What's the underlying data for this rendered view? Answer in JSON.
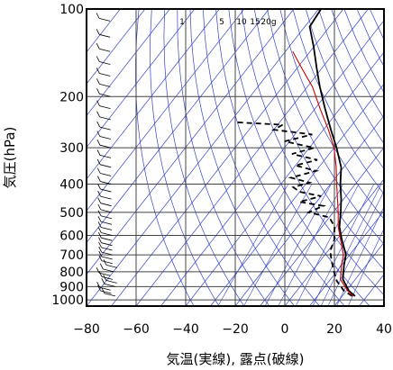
{
  "chart_data": {
    "type": "skew-t",
    "xlabel": "気温(実線), 露点(破線)",
    "ylabel": "気圧(hPa)",
    "xlim": [
      -80,
      40
    ],
    "ylim_hpa": [
      1050,
      100
    ],
    "x_ticks": [
      -80,
      -60,
      -40,
      -20,
      0,
      20,
      40
    ],
    "x_tick_labels": [
      "−80",
      "−60",
      "−40",
      "−20",
      "0",
      "20",
      "40"
    ],
    "pressure_ticks": [
      100,
      200,
      300,
      400,
      500,
      600,
      700,
      800,
      900,
      1000
    ],
    "pressure_tick_labels": [
      "100",
      "200",
      "300",
      "400",
      "500",
      "600",
      "700",
      "800",
      "900",
      "1000"
    ],
    "mixing_ratio_labels": [
      {
        "value": 1,
        "label": "1"
      },
      {
        "value": 5,
        "label": "5"
      },
      {
        "value": 10,
        "label": "10"
      },
      {
        "value": 15,
        "label": "15"
      },
      {
        "value": 20,
        "label": "20g"
      }
    ],
    "series": [
      {
        "role": "temperature-observed",
        "color": "#000000",
        "style": "solid",
        "points": [
          {
            "t": 25.2,
            "p": 970
          },
          {
            "t": 21.0,
            "p": 930
          },
          {
            "t": 15.0,
            "p": 850
          },
          {
            "t": 11.0,
            "p": 760
          },
          {
            "t": 8.5,
            "p": 700
          },
          {
            "t": 2.0,
            "p": 620
          },
          {
            "t": -3.0,
            "p": 560
          },
          {
            "t": -7.0,
            "p": 500
          },
          {
            "t": -11.0,
            "p": 450
          },
          {
            "t": -16.0,
            "p": 400
          },
          {
            "t": -21.0,
            "p": 350
          },
          {
            "t": -29.0,
            "p": 300
          },
          {
            "t": -37.0,
            "p": 260
          },
          {
            "t": -46.0,
            "p": 220
          },
          {
            "t": -55.0,
            "p": 185
          },
          {
            "t": -62.0,
            "p": 160
          },
          {
            "t": -70.0,
            "p": 135
          },
          {
            "t": -78.0,
            "p": 115
          },
          {
            "t": -79.0,
            "p": 100
          }
        ]
      },
      {
        "role": "dewpoint",
        "color": "#000000",
        "style": "dashed",
        "points": [
          {
            "t": 24.0,
            "p": 970
          },
          {
            "t": 19.0,
            "p": 930
          },
          {
            "t": 13.0,
            "p": 860
          },
          {
            "t": 9.0,
            "p": 800
          },
          {
            "t": 5.0,
            "p": 740
          },
          {
            "t": 1.0,
            "p": 680
          },
          {
            "t": -1.0,
            "p": 620
          },
          {
            "t": -5.0,
            "p": 560
          },
          {
            "t": -10.0,
            "p": 520
          },
          {
            "t": -20.0,
            "p": 500
          },
          {
            "t": -16.0,
            "p": 475
          },
          {
            "t": -27.0,
            "p": 460
          },
          {
            "t": -20.0,
            "p": 440
          },
          {
            "t": -30.0,
            "p": 425
          },
          {
            "t": -34.0,
            "p": 410
          },
          {
            "t": -29.0,
            "p": 395
          },
          {
            "t": -38.0,
            "p": 380
          },
          {
            "t": -30.0,
            "p": 360
          },
          {
            "t": -40.0,
            "p": 345
          },
          {
            "t": -33.0,
            "p": 330
          },
          {
            "t": -45.0,
            "p": 315
          },
          {
            "t": -38.0,
            "p": 300
          },
          {
            "t": -52.0,
            "p": 285
          },
          {
            "t": -43.0,
            "p": 270
          },
          {
            "t": -60.0,
            "p": 260
          },
          {
            "t": -58.0,
            "p": 250
          },
          {
            "t": -78.0,
            "p": 245
          }
        ]
      },
      {
        "role": "temperature-reference",
        "color": "#cc0000",
        "style": "solid",
        "points": [
          {
            "t": 24.5,
            "p": 970
          },
          {
            "t": 20.5,
            "p": 930
          },
          {
            "t": 14.0,
            "p": 850
          },
          {
            "t": 10.0,
            "p": 760
          },
          {
            "t": 7.5,
            "p": 700
          },
          {
            "t": 1.5,
            "p": 620
          },
          {
            "t": -3.5,
            "p": 560
          },
          {
            "t": -8.0,
            "p": 500
          },
          {
            "t": -12.5,
            "p": 450
          },
          {
            "t": -17.5,
            "p": 400
          },
          {
            "t": -23.0,
            "p": 350
          },
          {
            "t": -30.0,
            "p": 300
          },
          {
            "t": -38.0,
            "p": 260
          },
          {
            "t": -48.0,
            "p": 220
          },
          {
            "t": -58.0,
            "p": 185
          },
          {
            "t": -68.0,
            "p": 160
          },
          {
            "t": -77.0,
            "p": 140
          }
        ]
      }
    ],
    "wind_barbs": [
      {
        "p": 970,
        "speed_kt": 10
      },
      {
        "p": 950,
        "speed_kt": 10
      },
      {
        "p": 925,
        "speed_kt": 10
      },
      {
        "p": 900,
        "speed_kt": 10
      },
      {
        "p": 875,
        "speed_kt": 10
      },
      {
        "p": 850,
        "speed_kt": 10
      },
      {
        "p": 825,
        "speed_kt": 10
      },
      {
        "p": 800,
        "speed_kt": 10
      },
      {
        "p": 775,
        "speed_kt": 10
      },
      {
        "p": 750,
        "speed_kt": 10
      },
      {
        "p": 725,
        "speed_kt": 10
      },
      {
        "p": 700,
        "speed_kt": 10
      },
      {
        "p": 675,
        "speed_kt": 10
      },
      {
        "p": 650,
        "speed_kt": 10
      },
      {
        "p": 625,
        "speed_kt": 10
      },
      {
        "p": 600,
        "speed_kt": 10
      },
      {
        "p": 575,
        "speed_kt": 10
      },
      {
        "p": 550,
        "speed_kt": 10
      },
      {
        "p": 525,
        "speed_kt": 10
      },
      {
        "p": 500,
        "speed_kt": 10
      },
      {
        "p": 475,
        "speed_kt": 10
      },
      {
        "p": 450,
        "speed_kt": 10
      },
      {
        "p": 425,
        "speed_kt": 10
      },
      {
        "p": 400,
        "speed_kt": 10
      },
      {
        "p": 375,
        "speed_kt": 10
      },
      {
        "p": 350,
        "speed_kt": 10
      },
      {
        "p": 325,
        "speed_kt": 10
      },
      {
        "p": 300,
        "speed_kt": 10
      },
      {
        "p": 280,
        "speed_kt": 10
      },
      {
        "p": 260,
        "speed_kt": 10
      },
      {
        "p": 240,
        "speed_kt": 10
      },
      {
        "p": 220,
        "speed_kt": 10
      },
      {
        "p": 200,
        "speed_kt": 10
      },
      {
        "p": 185,
        "speed_kt": 10
      },
      {
        "p": 170,
        "speed_kt": 10
      },
      {
        "p": 155,
        "speed_kt": 10
      },
      {
        "p": 140,
        "speed_kt": 10
      },
      {
        "p": 125,
        "speed_kt": 10
      },
      {
        "p": 110,
        "speed_kt": 10
      },
      {
        "p": 100,
        "speed_kt": 10
      }
    ],
    "colors": {
      "background_lines": "#3344cc",
      "grid": "#444444",
      "observed": "#000000",
      "reference": "#cc0000"
    }
  }
}
